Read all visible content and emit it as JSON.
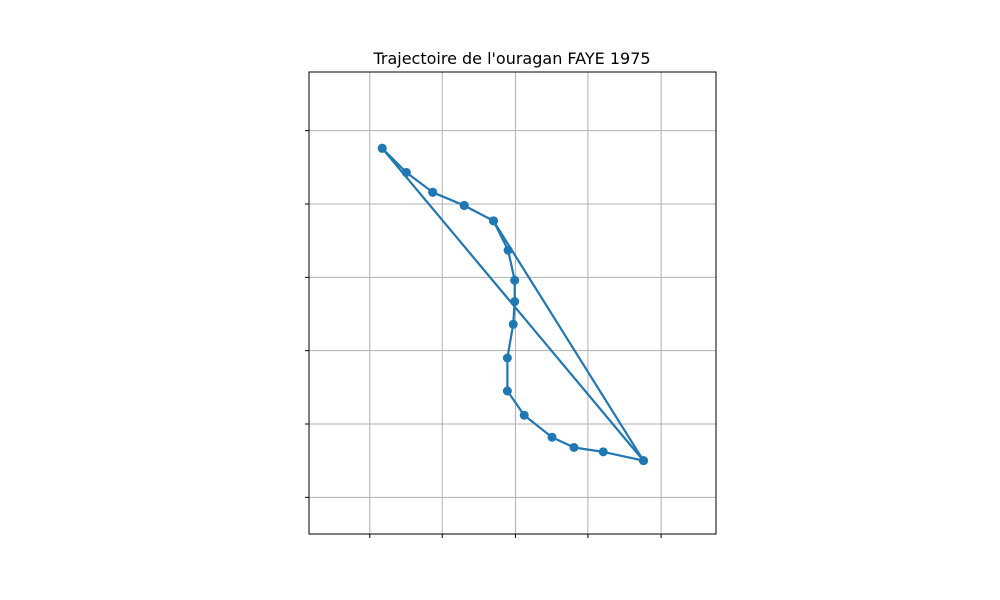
{
  "chart_data": {
    "type": "line",
    "title": "Trajectoire de l'ouragan FAYE 1975",
    "xlabel": "",
    "ylabel": "",
    "grid": true,
    "legend": "none",
    "xlim": [
      0,
      5.56
    ],
    "ylim": [
      0,
      6.3
    ],
    "xticks": [
      0.83,
      1.82,
      2.82,
      3.81,
      4.81
    ],
    "yticks": [
      0.5,
      1.5,
      2.5,
      3.5,
      4.5,
      5.5
    ],
    "series": [
      {
        "color": "#1f77b4",
        "marker": "circle",
        "x": [
          4.57,
          4.02,
          3.62,
          3.32,
          2.94,
          2.71,
          2.71,
          2.79,
          2.81,
          2.81,
          2.72,
          2.52,
          2.12,
          1.69,
          1.33,
          1.0,
          4.57,
          2.52,
          2.12,
          1.69,
          1.33,
          1.0
        ],
        "y": [
          1.0,
          1.12,
          1.18,
          1.32,
          1.62,
          1.95,
          2.4,
          2.86,
          3.17,
          3.46,
          3.87,
          4.27,
          4.48,
          4.66,
          4.93,
          5.26,
          1.0,
          4.27,
          4.48,
          4.66,
          4.93,
          5.26
        ]
      }
    ]
  }
}
